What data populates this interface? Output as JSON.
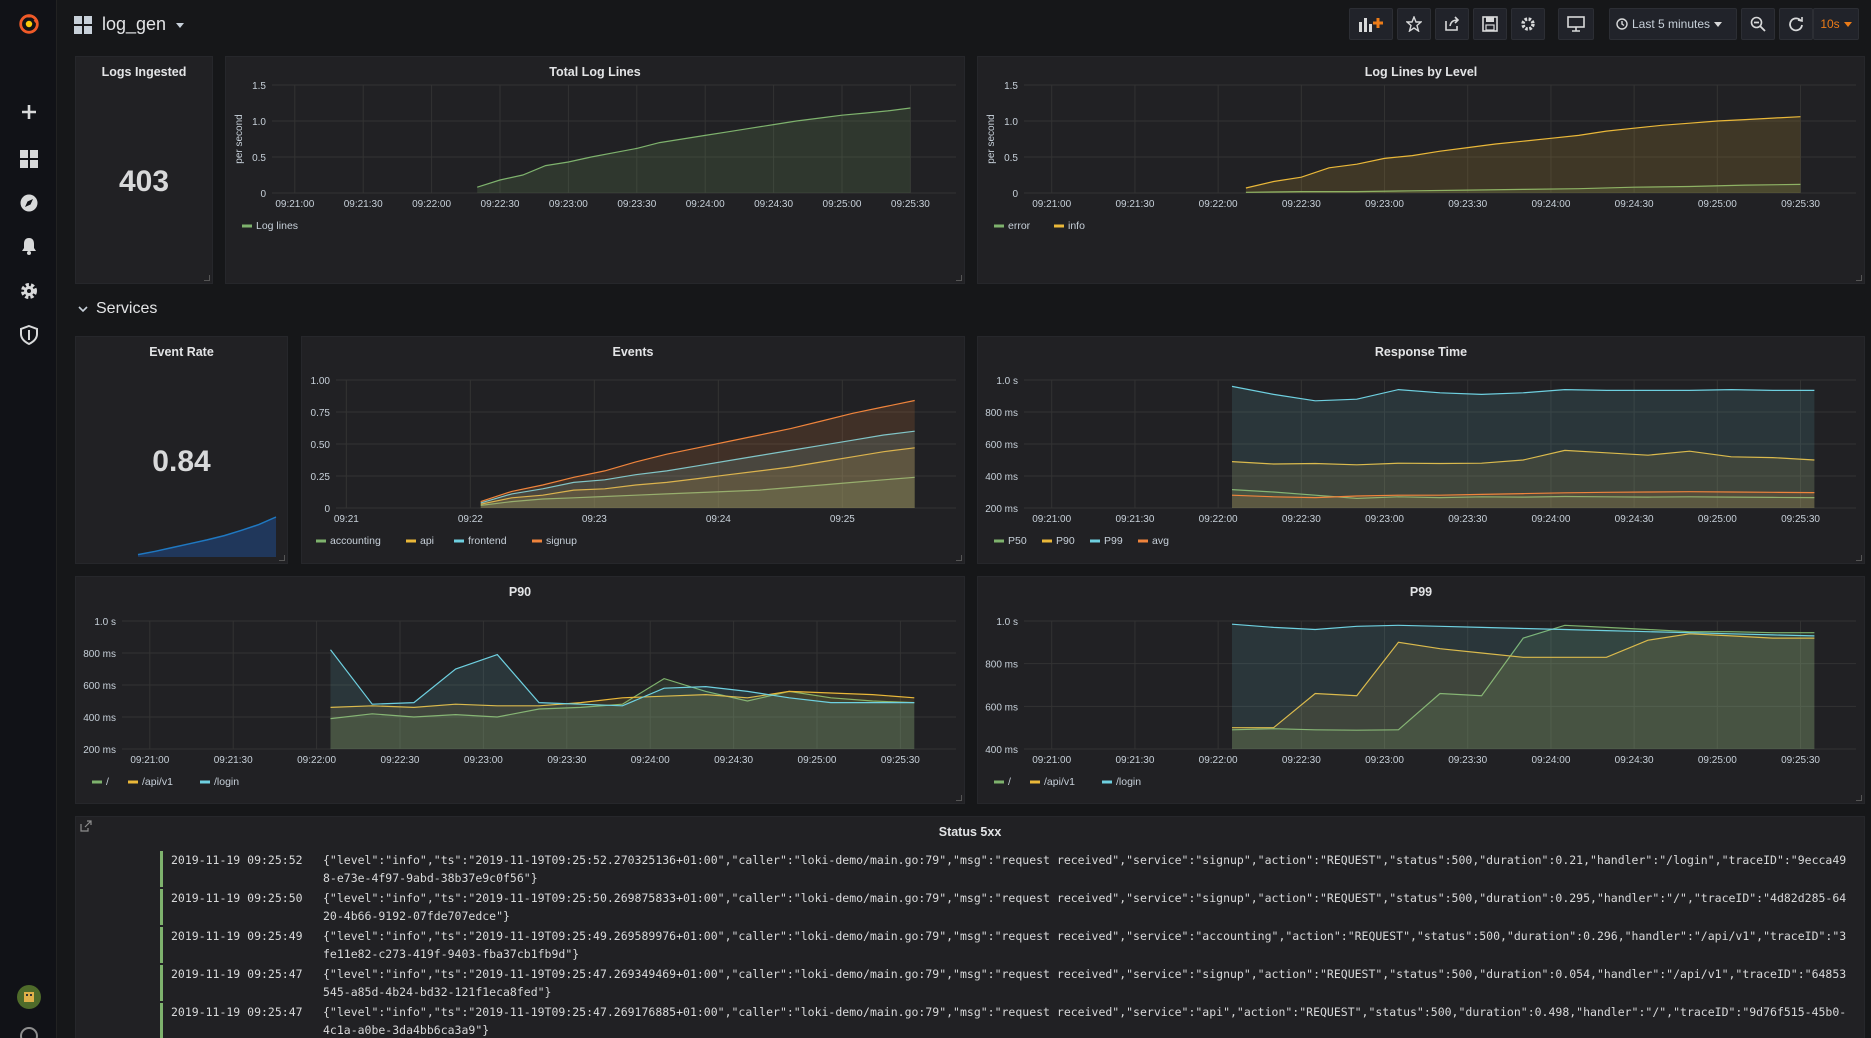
{
  "dashboard": {
    "title": "log_gen",
    "time_range": "Last 5 minutes",
    "refresh": "10s"
  },
  "sidebar": {
    "icons": [
      "grafana-logo-icon",
      "plus-icon",
      "dashboards-icon",
      "explore-icon",
      "alert-bell-icon",
      "gear-icon",
      "shield-icon",
      "user-avatar-icon",
      "help-icon"
    ]
  },
  "toolbar": {
    "icons": [
      "add-panel-icon",
      "star-icon",
      "share-icon",
      "save-icon",
      "settings-icon",
      "tv-mode-icon",
      "clock-icon",
      "zoom-out-icon",
      "refresh-icon"
    ]
  },
  "colors": {
    "green": "#7eb26d",
    "yellow": "#eab839",
    "blue": "#6ed0e0",
    "orange": "#ef843c",
    "bg": "#161719",
    "panel": "#212124"
  },
  "row": {
    "title": "Services"
  },
  "stats": {
    "logs_ingested": {
      "title": "Logs Ingested",
      "value": "403"
    },
    "event_rate": {
      "title": "Event Rate",
      "value": "0.84",
      "sparkline": [
        0.05,
        0.12,
        0.2,
        0.28,
        0.36,
        0.45,
        0.56,
        0.68,
        0.84
      ]
    }
  },
  "chart_data": [
    {
      "id": "total",
      "title": "Total Log Lines",
      "type": "line",
      "ylabel": "per second",
      "ylim": [
        0,
        1.5
      ],
      "yticks": [
        "0",
        "0.5",
        "1.0",
        "1.5"
      ],
      "yvals": [
        0,
        0.5,
        1.0,
        1.5
      ],
      "xlabels": [
        "09:21:00",
        "09:21:30",
        "09:22:00",
        "09:22:30",
        "09:23:00",
        "09:23:30",
        "09:24:00",
        "09:24:30",
        "09:25:00",
        "09:25:30"
      ],
      "xmin": 0,
      "xmax": 300,
      "series": [
        {
          "name": "Log lines",
          "color": "#7eb26d",
          "x": [
            90,
            100,
            110,
            120,
            130,
            140,
            150,
            160,
            170,
            180,
            190,
            200,
            210,
            220,
            230,
            240,
            250,
            260,
            270,
            280
          ],
          "y": [
            0.08,
            0.18,
            0.25,
            0.38,
            0.43,
            0.5,
            0.56,
            0.62,
            0.7,
            0.75,
            0.8,
            0.85,
            0.9,
            0.95,
            1.0,
            1.04,
            1.08,
            1.11,
            1.14,
            1.18
          ]
        }
      ]
    },
    {
      "id": "bylevel",
      "title": "Log Lines by Level",
      "type": "line",
      "ylabel": "per second",
      "ylim": [
        0,
        1.5
      ],
      "yticks": [
        "0",
        "0.5",
        "1.0",
        "1.5"
      ],
      "yvals": [
        0,
        0.5,
        1.0,
        1.5
      ],
      "xlabels": [
        "09:21:00",
        "09:21:30",
        "09:22:00",
        "09:22:30",
        "09:23:00",
        "09:23:30",
        "09:24:00",
        "09:24:30",
        "09:25:00",
        "09:25:30"
      ],
      "xmin": 0,
      "xmax": 300,
      "series": [
        {
          "name": "error",
          "color": "#7eb26d",
          "x": [
            80,
            100,
            120,
            140,
            160,
            180,
            200,
            220,
            240,
            260,
            280
          ],
          "y": [
            0.01,
            0.02,
            0.02,
            0.03,
            0.04,
            0.05,
            0.06,
            0.08,
            0.09,
            0.11,
            0.12
          ]
        },
        {
          "name": "info",
          "color": "#eab839",
          "x": [
            80,
            90,
            100,
            110,
            120,
            130,
            140,
            150,
            160,
            170,
            180,
            190,
            200,
            210,
            220,
            230,
            240,
            250,
            260,
            270,
            280
          ],
          "y": [
            0.07,
            0.16,
            0.22,
            0.35,
            0.4,
            0.48,
            0.52,
            0.58,
            0.63,
            0.68,
            0.72,
            0.76,
            0.8,
            0.86,
            0.9,
            0.94,
            0.97,
            1.0,
            1.02,
            1.04,
            1.06
          ]
        }
      ]
    },
    {
      "id": "events",
      "title": "Events",
      "type": "line",
      "ylim": [
        0,
        1.0
      ],
      "yticks": [
        "0",
        "0.25",
        "0.50",
        "0.75",
        "1.00"
      ],
      "yvals": [
        0,
        0.25,
        0.5,
        0.75,
        1.0
      ],
      "xlabels": [
        "09:21",
        "09:22",
        "09:23",
        "09:24",
        "09:25"
      ],
      "xmin": 0,
      "xmax": 300,
      "xfirst": 5,
      "series": [
        {
          "name": "accounting",
          "color": "#7eb26d",
          "x": [
            70,
            85,
            100,
            115,
            130,
            145,
            160,
            175,
            190,
            205,
            220,
            235,
            250,
            265,
            280
          ],
          "y": [
            0.02,
            0.05,
            0.07,
            0.08,
            0.09,
            0.1,
            0.11,
            0.12,
            0.13,
            0.14,
            0.16,
            0.18,
            0.2,
            0.22,
            0.24
          ]
        },
        {
          "name": "api",
          "color": "#eab839",
          "x": [
            70,
            85,
            100,
            115,
            130,
            145,
            160,
            175,
            190,
            205,
            220,
            235,
            250,
            265,
            280
          ],
          "y": [
            0.03,
            0.08,
            0.1,
            0.14,
            0.15,
            0.18,
            0.2,
            0.23,
            0.26,
            0.29,
            0.32,
            0.36,
            0.4,
            0.44,
            0.47
          ]
        },
        {
          "name": "frontend",
          "color": "#6ed0e0",
          "x": [
            70,
            85,
            100,
            115,
            130,
            145,
            160,
            175,
            190,
            205,
            220,
            235,
            250,
            265,
            280
          ],
          "y": [
            0.04,
            0.11,
            0.15,
            0.2,
            0.22,
            0.26,
            0.29,
            0.33,
            0.37,
            0.41,
            0.45,
            0.49,
            0.53,
            0.57,
            0.6
          ]
        },
        {
          "name": "signup",
          "color": "#ef843c",
          "x": [
            70,
            85,
            100,
            115,
            130,
            145,
            160,
            175,
            190,
            205,
            220,
            235,
            250,
            265,
            280
          ],
          "y": [
            0.05,
            0.13,
            0.18,
            0.24,
            0.29,
            0.36,
            0.42,
            0.47,
            0.52,
            0.57,
            0.62,
            0.68,
            0.74,
            0.79,
            0.84
          ]
        }
      ]
    },
    {
      "id": "resp",
      "title": "Response Time",
      "type": "area",
      "ylim": [
        200,
        1000
      ],
      "yticks": [
        "200 ms",
        "400 ms",
        "600 ms",
        "800 ms",
        "1.0 s"
      ],
      "yvals": [
        200,
        400,
        600,
        800,
        1000
      ],
      "xlabels": [
        "09:21:00",
        "09:21:30",
        "09:22:00",
        "09:22:30",
        "09:23:00",
        "09:23:30",
        "09:24:00",
        "09:24:30",
        "09:25:00",
        "09:25:30"
      ],
      "xmin": 0,
      "xmax": 300,
      "series": [
        {
          "name": "P50",
          "color": "#7eb26d",
          "x": [
            75,
            90,
            105,
            120,
            135,
            150,
            165,
            180,
            195,
            210,
            225,
            240,
            255,
            270,
            285
          ],
          "y": [
            315,
            300,
            280,
            260,
            270,
            265,
            270,
            268,
            272,
            270,
            268,
            270,
            268,
            266,
            265
          ]
        },
        {
          "name": "P90",
          "color": "#eab839",
          "x": [
            75,
            90,
            105,
            120,
            135,
            150,
            165,
            180,
            195,
            210,
            225,
            240,
            255,
            270,
            285
          ],
          "y": [
            490,
            475,
            478,
            470,
            480,
            478,
            480,
            500,
            560,
            545,
            530,
            555,
            520,
            515,
            500
          ]
        },
        {
          "name": "P99",
          "color": "#6ed0e0",
          "x": [
            75,
            90,
            105,
            120,
            135,
            150,
            165,
            180,
            195,
            210,
            225,
            240,
            255,
            270,
            285
          ],
          "y": [
            960,
            910,
            870,
            880,
            940,
            920,
            910,
            920,
            940,
            935,
            935,
            935,
            940,
            935,
            935
          ]
        },
        {
          "name": "avg",
          "color": "#ef843c",
          "x": [
            75,
            90,
            105,
            120,
            135,
            150,
            165,
            180,
            195,
            210,
            225,
            240,
            255,
            270,
            285
          ],
          "y": [
            280,
            270,
            265,
            275,
            280,
            280,
            285,
            290,
            295,
            298,
            300,
            302,
            300,
            298,
            296
          ]
        }
      ]
    },
    {
      "id": "p90",
      "title": "P90",
      "type": "area",
      "ylim": [
        200,
        1000
      ],
      "yticks": [
        "200 ms",
        "400 ms",
        "600 ms",
        "800 ms",
        "1.0 s"
      ],
      "yvals": [
        200,
        400,
        600,
        800,
        1000
      ],
      "xlabels": [
        "09:21:00",
        "09:21:30",
        "09:22:00",
        "09:22:30",
        "09:23:00",
        "09:23:30",
        "09:24:00",
        "09:24:30",
        "09:25:00",
        "09:25:30"
      ],
      "xmin": 0,
      "xmax": 300,
      "series": [
        {
          "name": "/",
          "color": "#7eb26d",
          "x": [
            75,
            90,
            105,
            120,
            135,
            150,
            165,
            180,
            195,
            210,
            225,
            240,
            255,
            270,
            285
          ],
          "y": [
            390,
            420,
            400,
            415,
            400,
            450,
            460,
            480,
            640,
            560,
            500,
            560,
            520,
            500,
            490
          ]
        },
        {
          "name": "/api/v1",
          "color": "#eab839",
          "x": [
            75,
            90,
            105,
            120,
            135,
            150,
            165,
            180,
            195,
            210,
            225,
            240,
            255,
            270,
            285
          ],
          "y": [
            460,
            470,
            460,
            480,
            470,
            470,
            490,
            520,
            530,
            540,
            520,
            560,
            550,
            540,
            520
          ]
        },
        {
          "name": "/login",
          "color": "#6ed0e0",
          "x": [
            75,
            90,
            105,
            120,
            135,
            150,
            165,
            180,
            195,
            210,
            225,
            240,
            255,
            270,
            285
          ],
          "y": [
            820,
            480,
            490,
            700,
            790,
            490,
            480,
            470,
            580,
            590,
            560,
            520,
            490,
            490,
            490
          ]
        }
      ]
    },
    {
      "id": "p99",
      "title": "P99",
      "type": "area",
      "ylim": [
        400,
        1000
      ],
      "yticks": [
        "400 ms",
        "600 ms",
        "800 ms",
        "1.0 s"
      ],
      "yvals": [
        400,
        600,
        800,
        1000
      ],
      "xlabels": [
        "09:21:00",
        "09:21:30",
        "09:22:00",
        "09:22:30",
        "09:23:00",
        "09:23:30",
        "09:24:00",
        "09:24:30",
        "09:25:00",
        "09:25:30"
      ],
      "xmin": 0,
      "xmax": 300,
      "series": [
        {
          "name": "/",
          "color": "#7eb26d",
          "x": [
            75,
            90,
            105,
            120,
            135,
            150,
            165,
            180,
            195,
            210,
            225,
            240,
            255,
            270,
            285
          ],
          "y": [
            490,
            495,
            490,
            488,
            490,
            660,
            650,
            920,
            980,
            970,
            960,
            950,
            950,
            945,
            945
          ]
        },
        {
          "name": "/api/v1",
          "color": "#eab839",
          "x": [
            75,
            90,
            105,
            120,
            135,
            150,
            165,
            180,
            195,
            210,
            225,
            240,
            255,
            270,
            285
          ],
          "y": [
            500,
            500,
            660,
            650,
            900,
            870,
            850,
            830,
            830,
            830,
            910,
            940,
            930,
            920,
            920
          ]
        },
        {
          "name": "/login",
          "color": "#6ed0e0",
          "x": [
            75,
            90,
            105,
            120,
            135,
            150,
            165,
            180,
            195,
            210,
            225,
            240,
            255,
            270,
            285
          ],
          "y": [
            985,
            970,
            960,
            975,
            980,
            975,
            970,
            965,
            960,
            955,
            950,
            945,
            940,
            935,
            930
          ]
        }
      ]
    }
  ],
  "logs": {
    "title": "Status 5xx",
    "lines": [
      {
        "ts": "2019-11-19 09:25:52",
        "msg": "{\"level\":\"info\",\"ts\":\"2019-11-19T09:25:52.270325136+01:00\",\"caller\":\"loki-demo/main.go:79\",\"msg\":\"request received\",\"service\":\"signup\",\"action\":\"REQUEST\",\"status\":500,\"duration\":0.21,\"handler\":\"/login\",\"traceID\":\"9ecca498-e73e-4f97-9abd-38b37e9c0f56\"}"
      },
      {
        "ts": "2019-11-19 09:25:50",
        "msg": "{\"level\":\"info\",\"ts\":\"2019-11-19T09:25:50.269875833+01:00\",\"caller\":\"loki-demo/main.go:79\",\"msg\":\"request received\",\"service\":\"signup\",\"action\":\"REQUEST\",\"status\":500,\"duration\":0.295,\"handler\":\"/\",\"traceID\":\"4d82d285-6420-4b66-9192-07fde707edce\"}"
      },
      {
        "ts": "2019-11-19 09:25:49",
        "msg": "{\"level\":\"info\",\"ts\":\"2019-11-19T09:25:49.269589976+01:00\",\"caller\":\"loki-demo/main.go:79\",\"msg\":\"request received\",\"service\":\"accounting\",\"action\":\"REQUEST\",\"status\":500,\"duration\":0.296,\"handler\":\"/api/v1\",\"traceID\":\"3fe11e82-c273-419f-9403-fba37cb1fb9d\"}"
      },
      {
        "ts": "2019-11-19 09:25:47",
        "msg": "{\"level\":\"info\",\"ts\":\"2019-11-19T09:25:47.269349469+01:00\",\"caller\":\"loki-demo/main.go:79\",\"msg\":\"request received\",\"service\":\"signup\",\"action\":\"REQUEST\",\"status\":500,\"duration\":0.054,\"handler\":\"/api/v1\",\"traceID\":\"64853545-a85d-4b24-bd32-121f1eca8fed\"}"
      },
      {
        "ts": "2019-11-19 09:25:47",
        "msg": "{\"level\":\"info\",\"ts\":\"2019-11-19T09:25:47.269176885+01:00\",\"caller\":\"loki-demo/main.go:79\",\"msg\":\"request received\",\"service\":\"api\",\"action\":\"REQUEST\",\"status\":500,\"duration\":0.498,\"handler\":\"/\",\"traceID\":\"9d76f515-45b0-4c1a-a0be-3da4bb6ca3a9\"}"
      }
    ]
  }
}
